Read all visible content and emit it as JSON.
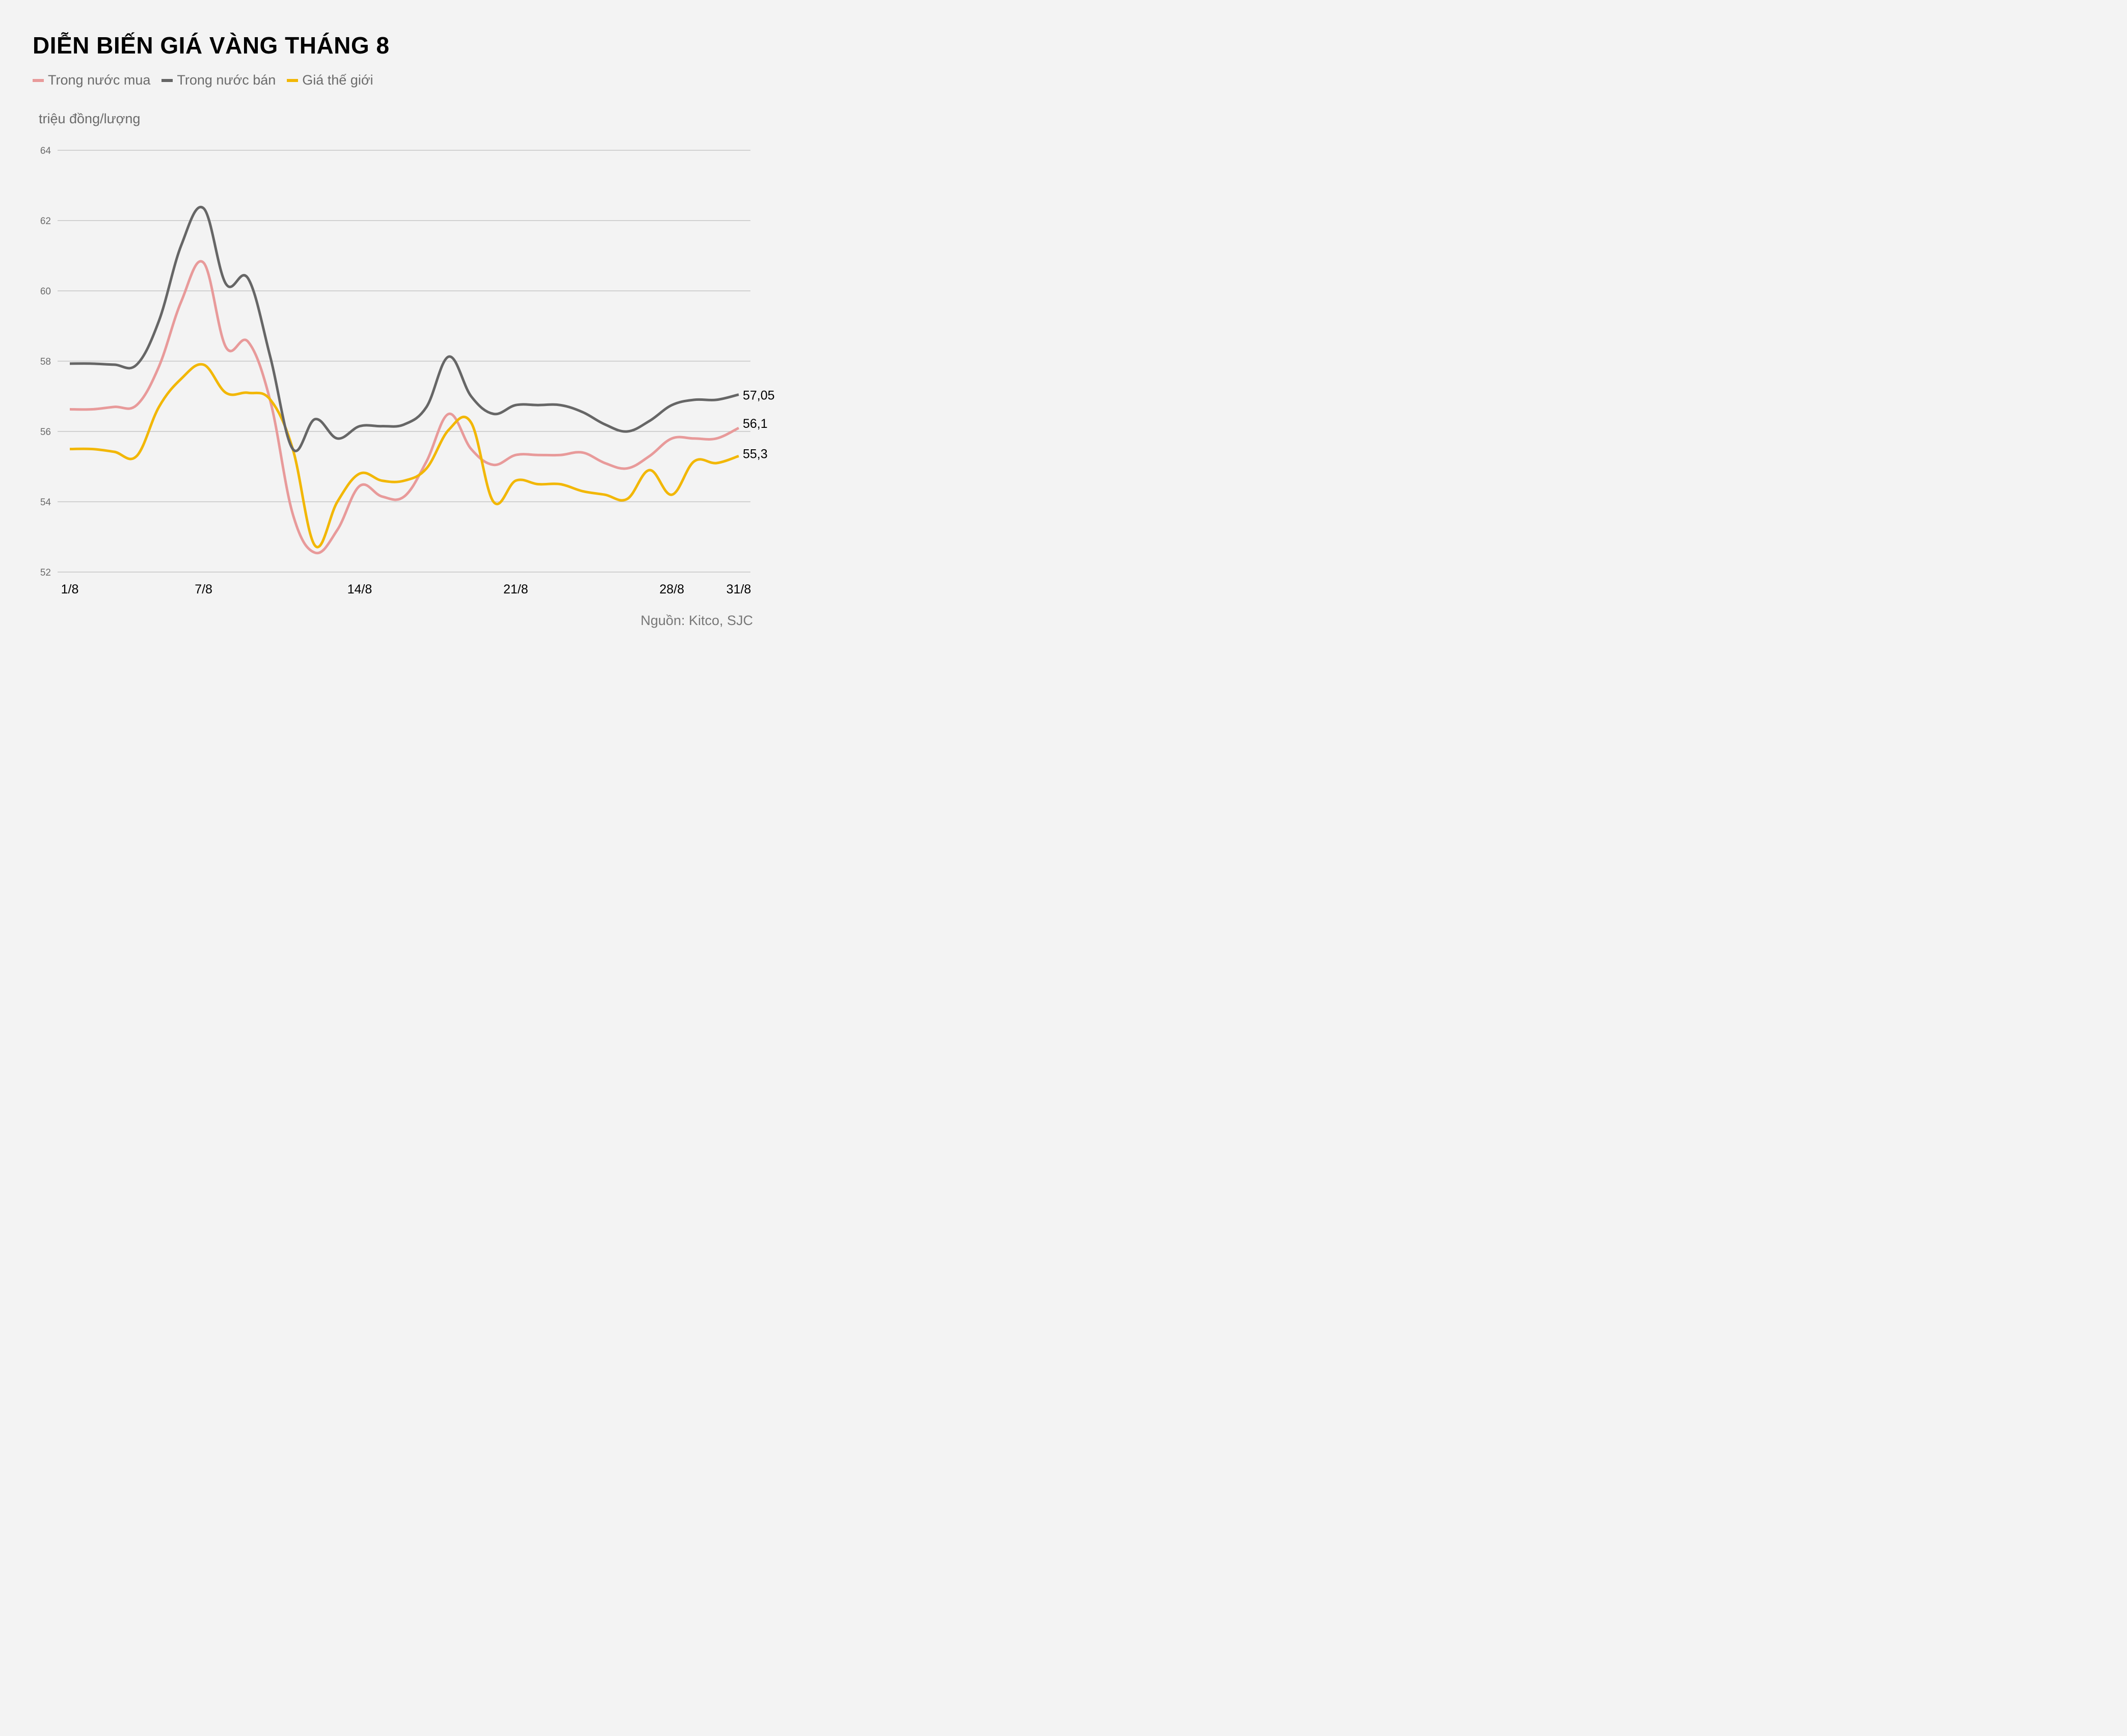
{
  "title": "DIỄN BIẾN GIÁ VÀNG THÁNG 8",
  "legend": [
    {
      "label": "Trong nước mua",
      "color": "#e89a9a"
    },
    {
      "label": "Trong nước bán",
      "color": "#666666"
    },
    {
      "label": "Giá thế giới",
      "color": "#f2b705"
    }
  ],
  "unit_label": "triệu đồng/lượng",
  "source": "Nguồn: Kitco, SJC",
  "end_labels": {
    "sell": "57,05",
    "buy": "56,1",
    "world": "55,3"
  },
  "chart_data": {
    "type": "line",
    "title": "DIỄN BIẾN GIÁ VÀNG THÁNG 8",
    "xlabel": "",
    "ylabel": "triệu đồng/lượng",
    "ylim": [
      52,
      64
    ],
    "yticks": [
      52,
      54,
      56,
      58,
      60,
      62,
      64
    ],
    "grid": true,
    "legend_position": "top-left",
    "x": [
      "1/8",
      "2/8",
      "3/8",
      "4/8",
      "5/8",
      "6/8",
      "7/8",
      "8/8",
      "9/8",
      "10/8",
      "11/8",
      "12/8",
      "13/8",
      "14/8",
      "15/8",
      "16/8",
      "17/8",
      "18/8",
      "19/8",
      "20/8",
      "21/8",
      "22/8",
      "23/8",
      "24/8",
      "25/8",
      "26/8",
      "27/8",
      "28/8",
      "29/8",
      "30/8",
      "31/8"
    ],
    "xtick_labels": [
      "1/8",
      "7/8",
      "14/8",
      "21/8",
      "28/8",
      "31/8"
    ],
    "series": [
      {
        "name": "Trong nước mua",
        "color": "#e89a9a",
        "values": [
          56.63,
          56.63,
          56.7,
          56.75,
          57.85,
          59.7,
          60.8,
          58.4,
          58.55,
          56.85,
          53.65,
          52.55,
          53.2,
          54.45,
          54.15,
          54.15,
          55.15,
          56.5,
          55.5,
          55.05,
          55.33,
          55.33,
          55.33,
          55.4,
          55.1,
          54.95,
          55.3,
          55.8,
          55.8,
          55.8,
          56.1
        ]
      },
      {
        "name": "Trong nước bán",
        "color": "#666666",
        "values": [
          57.93,
          57.93,
          57.9,
          57.9,
          59.15,
          61.3,
          62.35,
          60.2,
          60.35,
          58.1,
          55.5,
          56.35,
          55.8,
          56.15,
          56.15,
          56.2,
          56.7,
          58.13,
          57.0,
          56.5,
          56.75,
          56.75,
          56.75,
          56.55,
          56.2,
          56.0,
          56.3,
          56.75,
          56.9,
          56.9,
          57.05
        ]
      },
      {
        "name": "Giá thế giới",
        "color": "#f2b705",
        "values": [
          55.5,
          55.5,
          55.42,
          55.3,
          56.7,
          57.5,
          57.9,
          57.1,
          57.1,
          56.9,
          55.5,
          52.75,
          54.0,
          54.8,
          54.6,
          54.6,
          54.95,
          56.05,
          56.25,
          54.0,
          54.6,
          54.5,
          54.5,
          54.3,
          54.2,
          54.08,
          54.9,
          54.2,
          55.15,
          55.1,
          55.3
        ]
      }
    ],
    "annotations": [
      {
        "series": "Trong nước bán",
        "x": "31/8",
        "text": "57,05"
      },
      {
        "series": "Trong nước mua",
        "x": "31/8",
        "text": "56,1"
      },
      {
        "series": "Giá thế giới",
        "x": "31/8",
        "text": "55,3"
      }
    ]
  }
}
